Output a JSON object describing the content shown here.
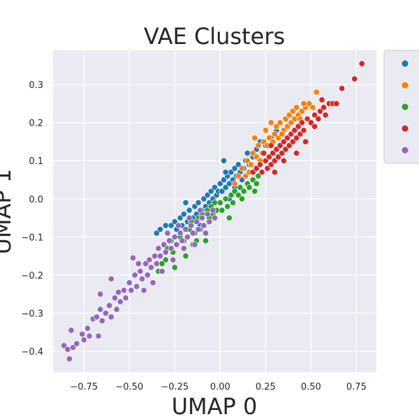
{
  "chart_data": {
    "type": "scatter",
    "title": "VAE Clusters",
    "xlabel": "UMAP 0",
    "ylabel": "UMAP 1",
    "xlim": [
      -0.92,
      0.86
    ],
    "ylim": [
      -0.455,
      0.39
    ],
    "xticks": [
      -0.75,
      -0.5,
      -0.25,
      0.0,
      0.25,
      0.5,
      0.75
    ],
    "xtick_labels": [
      "−0.75",
      "−0.50",
      "−0.25",
      "0.00",
      "0.25",
      "0.50",
      "0.75"
    ],
    "yticks": [
      -0.4,
      -0.3,
      -0.2,
      -0.1,
      0.0,
      0.1,
      0.2,
      0.3
    ],
    "ytick_labels": [
      "−0.4",
      "−0.3",
      "−0.2",
      "−0.1",
      "0.0",
      "0.1",
      "0.2",
      "0.3"
    ],
    "grid": true,
    "legend_position": "outside-right-top",
    "series": [
      {
        "color": "#1f77b4",
        "points": [
          [
            -0.35,
            -0.09
          ],
          [
            -0.33,
            -0.08
          ],
          [
            -0.3,
            -0.07
          ],
          [
            -0.28,
            -0.11
          ],
          [
            -0.27,
            -0.07
          ],
          [
            -0.25,
            -0.06
          ],
          [
            -0.24,
            -0.08
          ],
          [
            -0.22,
            -0.05
          ],
          [
            -0.21,
            -0.07
          ],
          [
            -0.2,
            -0.04
          ],
          [
            -0.18,
            -0.06
          ],
          [
            -0.17,
            -0.03
          ],
          [
            -0.15,
            -0.05
          ],
          [
            -0.14,
            -0.02
          ],
          [
            -0.13,
            -0.04
          ],
          [
            -0.12,
            -0.01
          ],
          [
            -0.1,
            -0.03
          ],
          [
            -0.09,
            0.0
          ],
          [
            -0.08,
            -0.02
          ],
          [
            -0.07,
            0.01
          ],
          [
            -0.06,
            -0.01
          ],
          [
            -0.05,
            0.02
          ],
          [
            -0.04,
            0.0
          ],
          [
            -0.03,
            0.03
          ],
          [
            -0.02,
            0.01
          ],
          [
            -0.01,
            0.02
          ],
          [
            0.0,
            0.04
          ],
          [
            0.01,
            0.02
          ],
          [
            0.02,
            0.05
          ],
          [
            0.03,
            0.03
          ],
          [
            0.04,
            0.06
          ],
          [
            0.05,
            0.04
          ],
          [
            0.06,
            0.07
          ],
          [
            0.07,
            0.05
          ],
          [
            0.08,
            0.08
          ],
          [
            0.09,
            0.06
          ],
          [
            0.1,
            0.09
          ],
          [
            0.11,
            0.07
          ],
          [
            0.12,
            0.05
          ],
          [
            0.13,
            0.08
          ],
          [
            0.14,
            0.1
          ],
          [
            0.16,
            0.09
          ],
          [
            0.18,
            0.11
          ],
          [
            0.2,
            0.13
          ],
          [
            0.22,
            0.15
          ],
          [
            0.25,
            0.14
          ],
          [
            0.28,
            0.16
          ],
          [
            0.31,
            0.18
          ],
          [
            0.02,
            0.1
          ],
          [
            0.05,
            0.0
          ],
          [
            -0.11,
            -0.07
          ],
          [
            -0.19,
            -0.01
          ],
          [
            0.03,
            0.07
          ],
          [
            0.08,
            0.03
          ],
          [
            0.15,
            0.12
          ]
        ]
      },
      {
        "color": "#ff7f0e",
        "points": [
          [
            0.08,
            0.04
          ],
          [
            0.1,
            0.06
          ],
          [
            0.12,
            0.08
          ],
          [
            0.14,
            0.06
          ],
          [
            0.15,
            0.1
          ],
          [
            0.17,
            0.09
          ],
          [
            0.18,
            0.12
          ],
          [
            0.2,
            0.11
          ],
          [
            0.21,
            0.14
          ],
          [
            0.23,
            0.12
          ],
          [
            0.24,
            0.15
          ],
          [
            0.26,
            0.14
          ],
          [
            0.27,
            0.16
          ],
          [
            0.29,
            0.15
          ],
          [
            0.3,
            0.17
          ],
          [
            0.31,
            0.19
          ],
          [
            0.32,
            0.16
          ],
          [
            0.33,
            0.2
          ],
          [
            0.35,
            0.18
          ],
          [
            0.36,
            0.21
          ],
          [
            0.37,
            0.19
          ],
          [
            0.38,
            0.22
          ],
          [
            0.39,
            0.2
          ],
          [
            0.4,
            0.23
          ],
          [
            0.41,
            0.21
          ],
          [
            0.42,
            0.24
          ],
          [
            0.43,
            0.22
          ],
          [
            0.44,
            0.21
          ],
          [
            0.45,
            0.23
          ],
          [
            0.47,
            0.24
          ],
          [
            0.49,
            0.25
          ],
          [
            0.51,
            0.24
          ],
          [
            0.53,
            0.28
          ],
          [
            0.16,
            0.07
          ],
          [
            0.22,
            0.1
          ],
          [
            0.19,
            0.16
          ],
          [
            0.25,
            0.18
          ],
          [
            0.34,
            0.17
          ],
          [
            0.28,
            0.2
          ],
          [
            0.46,
            0.25
          ]
        ]
      },
      {
        "color": "#2ca02c",
        "points": [
          [
            -0.34,
            -0.19
          ],
          [
            -0.32,
            -0.17
          ],
          [
            -0.3,
            -0.16
          ],
          [
            -0.29,
            -0.13
          ],
          [
            -0.27,
            -0.11
          ],
          [
            -0.26,
            -0.14
          ],
          [
            -0.24,
            -0.12
          ],
          [
            -0.22,
            -0.1
          ],
          [
            -0.2,
            -0.11
          ],
          [
            -0.19,
            -0.15
          ],
          [
            -0.17,
            -0.08
          ],
          [
            -0.16,
            -0.06
          ],
          [
            -0.14,
            -0.09
          ],
          [
            -0.13,
            -0.11
          ],
          [
            -0.12,
            -0.05
          ],
          [
            -0.11,
            -0.08
          ],
          [
            -0.1,
            -0.04
          ],
          [
            -0.09,
            -0.07
          ],
          [
            -0.07,
            -0.03
          ],
          [
            -0.06,
            -0.05
          ],
          [
            -0.05,
            -0.02
          ],
          [
            -0.04,
            -0.04
          ],
          [
            -0.03,
            -0.01
          ],
          [
            -0.02,
            -0.03
          ],
          [
            0.0,
            -0.01
          ],
          [
            0.01,
            -0.03
          ],
          [
            0.03,
            0.0
          ],
          [
            0.04,
            -0.02
          ],
          [
            0.06,
            0.01
          ],
          [
            0.07,
            -0.01
          ],
          [
            0.08,
            0.02
          ],
          [
            0.1,
            0.01
          ],
          [
            0.11,
            0.03
          ],
          [
            0.13,
            0.02
          ],
          [
            0.15,
            0.04
          ],
          [
            0.16,
            0.03
          ],
          [
            0.18,
            0.05
          ],
          [
            0.2,
            0.04
          ],
          [
            0.21,
            0.06
          ],
          [
            -0.25,
            -0.18
          ],
          [
            -0.08,
            -0.11
          ],
          [
            0.05,
            -0.05
          ],
          [
            0.12,
            0.0
          ],
          [
            -0.15,
            -0.12
          ],
          [
            0.19,
            0.02
          ]
        ]
      },
      {
        "color": "#d62728",
        "points": [
          [
            0.18,
            0.07
          ],
          [
            0.2,
            0.08
          ],
          [
            0.22,
            0.09
          ],
          [
            0.23,
            0.07
          ],
          [
            0.25,
            0.1
          ],
          [
            0.26,
            0.08
          ],
          [
            0.27,
            0.11
          ],
          [
            0.28,
            0.09
          ],
          [
            0.29,
            0.12
          ],
          [
            0.3,
            0.1
          ],
          [
            0.31,
            0.13
          ],
          [
            0.32,
            0.11
          ],
          [
            0.33,
            0.14
          ],
          [
            0.34,
            0.12
          ],
          [
            0.35,
            0.15
          ],
          [
            0.36,
            0.13
          ],
          [
            0.37,
            0.16
          ],
          [
            0.38,
            0.14
          ],
          [
            0.39,
            0.17
          ],
          [
            0.4,
            0.15
          ],
          [
            0.41,
            0.18
          ],
          [
            0.42,
            0.16
          ],
          [
            0.43,
            0.19
          ],
          [
            0.44,
            0.17
          ],
          [
            0.45,
            0.2
          ],
          [
            0.46,
            0.18
          ],
          [
            0.48,
            0.21
          ],
          [
            0.5,
            0.2
          ],
          [
            0.52,
            0.22
          ],
          [
            0.54,
            0.21
          ],
          [
            0.55,
            0.23
          ],
          [
            0.57,
            0.24
          ],
          [
            0.58,
            0.22
          ],
          [
            0.6,
            0.25
          ],
          [
            0.62,
            0.25
          ],
          [
            0.64,
            0.25
          ],
          [
            0.67,
            0.29
          ],
          [
            0.74,
            0.315
          ],
          [
            0.78,
            0.355
          ],
          [
            0.52,
            0.19
          ],
          [
            0.56,
            0.26
          ],
          [
            0.24,
            0.12
          ],
          [
            0.3,
            0.07
          ],
          [
            0.47,
            0.15
          ],
          [
            0.35,
            0.1
          ],
          [
            0.42,
            0.12
          ],
          [
            0.28,
            0.14
          ]
        ]
      },
      {
        "color": "#9467bd",
        "points": [
          [
            -0.86,
            -0.385
          ],
          [
            -0.84,
            -0.395
          ],
          [
            -0.83,
            -0.42
          ],
          [
            -0.82,
            -0.345
          ],
          [
            -0.81,
            -0.39
          ],
          [
            -0.79,
            -0.38
          ],
          [
            -0.76,
            -0.355
          ],
          [
            -0.75,
            -0.37
          ],
          [
            -0.73,
            -0.34
          ],
          [
            -0.72,
            -0.36
          ],
          [
            -0.7,
            -0.315
          ],
          [
            -0.68,
            -0.31
          ],
          [
            -0.67,
            -0.36
          ],
          [
            -0.66,
            -0.29
          ],
          [
            -0.65,
            -0.32
          ],
          [
            -0.63,
            -0.3
          ],
          [
            -0.61,
            -0.28
          ],
          [
            -0.6,
            -0.31
          ],
          [
            -0.58,
            -0.26
          ],
          [
            -0.57,
            -0.29
          ],
          [
            -0.56,
            -0.245
          ],
          [
            -0.55,
            -0.27
          ],
          [
            -0.53,
            -0.24
          ],
          [
            -0.52,
            -0.26
          ],
          [
            -0.5,
            -0.22
          ],
          [
            -0.49,
            -0.24
          ],
          [
            -0.47,
            -0.2
          ],
          [
            -0.46,
            -0.23
          ],
          [
            -0.44,
            -0.19
          ],
          [
            -0.43,
            -0.21
          ],
          [
            -0.41,
            -0.17
          ],
          [
            -0.4,
            -0.2
          ],
          [
            -0.39,
            -0.16
          ],
          [
            -0.38,
            -0.18
          ],
          [
            -0.36,
            -0.15
          ],
          [
            -0.35,
            -0.17
          ],
          [
            -0.34,
            -0.13
          ],
          [
            -0.33,
            -0.15
          ],
          [
            -0.31,
            -0.12
          ],
          [
            -0.3,
            -0.14
          ],
          [
            -0.28,
            -0.11
          ],
          [
            -0.27,
            -0.13
          ],
          [
            -0.25,
            -0.1
          ],
          [
            -0.24,
            -0.12
          ],
          [
            -0.22,
            -0.09
          ],
          [
            -0.21,
            -0.11
          ],
          [
            -0.19,
            -0.08
          ],
          [
            -0.18,
            -0.1
          ],
          [
            -0.16,
            -0.07
          ],
          [
            -0.15,
            -0.09
          ],
          [
            -0.13,
            -0.06
          ],
          [
            -0.12,
            -0.08
          ],
          [
            -0.1,
            -0.05
          ],
          [
            -0.09,
            -0.07
          ],
          [
            -0.07,
            -0.04
          ],
          [
            -0.06,
            -0.06
          ],
          [
            -0.04,
            -0.03
          ],
          [
            -0.03,
            -0.05
          ],
          [
            -0.6,
            -0.21
          ],
          [
            -0.66,
            -0.25
          ],
          [
            -0.48,
            -0.155
          ],
          [
            -0.42,
            -0.24
          ],
          [
            -0.37,
            -0.22
          ],
          [
            -0.32,
            -0.19
          ],
          [
            -0.26,
            -0.16
          ],
          [
            -0.2,
            -0.13
          ],
          [
            -0.14,
            -0.12
          ],
          [
            -0.08,
            -0.09
          ],
          [
            -0.45,
            -0.17
          ],
          [
            -0.29,
            -0.09
          ],
          [
            -0.23,
            -0.07
          ],
          [
            -0.17,
            -0.05
          ],
          [
            -0.11,
            -0.03
          ]
        ]
      }
    ]
  }
}
